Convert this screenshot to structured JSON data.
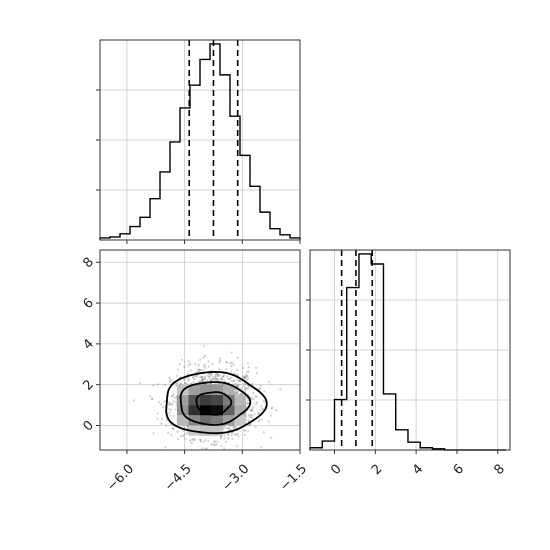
{
  "chart_data": {
    "type": "corner",
    "params": [
      {
        "name": "",
        "range": [
          -6.7,
          -1.5
        ],
        "ticks": [
          -6.0,
          -4.5,
          -3.0,
          -1.5
        ],
        "tick_labels": [
          "−6.0",
          "−4.5",
          "−3.0",
          "−1.5"
        ],
        "quantiles": [
          -4.38,
          -3.75,
          -3.12
        ],
        "hist": {
          "bin_edges": [
            -6.7,
            -6.44,
            -6.18,
            -5.92,
            -5.66,
            -5.4,
            -5.14,
            -4.88,
            -4.62,
            -4.36,
            -4.1,
            -3.84,
            -3.58,
            -3.32,
            -3.06,
            -2.8,
            -2.54,
            -2.28,
            -2.02,
            -1.76,
            -1.5
          ],
          "counts": [
            2,
            3,
            6,
            13,
            22,
            40,
            66,
            95,
            128,
            150,
            175,
            190,
            160,
            120,
            82,
            52,
            27,
            11,
            5,
            2
          ]
        }
      },
      {
        "name": "",
        "range": [
          -1.2,
          8.6
        ],
        "ticks": [
          0,
          2,
          4,
          6,
          8
        ],
        "tick_labels": [
          "0",
          "2",
          "4",
          "6",
          "8"
        ],
        "quantiles": [
          0.35,
          1.05,
          1.85
        ],
        "hist": {
          "bin_edges": [
            -1.2,
            -0.6,
            0.0,
            0.6,
            1.2,
            1.8,
            2.4,
            3.0,
            3.6,
            4.2,
            4.8,
            5.4,
            6.0,
            6.6,
            7.2,
            7.8,
            8.4
          ],
          "counts": [
            2,
            8,
            45,
            145,
            175,
            166,
            50,
            18,
            7,
            2,
            1,
            0,
            0,
            0,
            0,
            0
          ]
        }
      }
    ],
    "joint": {
      "x_param": 0,
      "y_param": 1,
      "center": [
        -3.75,
        1.1
      ],
      "sigma": [
        0.55,
        0.85
      ],
      "density_grid": {
        "x_edges": [
          -5.0,
          -4.7,
          -4.4,
          -4.1,
          -3.8,
          -3.5,
          -3.2,
          -2.9,
          -2.6
        ],
        "y_edges": [
          -0.5,
          0.0,
          0.5,
          1.0,
          1.5,
          2.0,
          2.5
        ],
        "values": [
          [
            0.05,
            0.1,
            0.18,
            0.22,
            0.2,
            0.14,
            0.08,
            0.04
          ],
          [
            0.1,
            0.25,
            0.45,
            0.55,
            0.5,
            0.35,
            0.18,
            0.08
          ],
          [
            0.15,
            0.4,
            0.8,
            1.0,
            0.95,
            0.6,
            0.3,
            0.1
          ],
          [
            0.12,
            0.35,
            0.65,
            0.75,
            0.72,
            0.5,
            0.25,
            0.1
          ],
          [
            0.08,
            0.2,
            0.35,
            0.4,
            0.38,
            0.28,
            0.14,
            0.06
          ],
          [
            0.03,
            0.08,
            0.14,
            0.16,
            0.15,
            0.1,
            0.06,
            0.02
          ]
        ]
      },
      "contour_levels": [
        {
          "level": 1,
          "half_width": [
            0.45,
            0.55
          ]
        },
        {
          "level": 2,
          "half_width": [
            0.9,
            1.05
          ]
        },
        {
          "level": 3,
          "half_width": [
            1.3,
            1.5
          ]
        }
      ]
    },
    "grid": true,
    "legend": "none"
  }
}
